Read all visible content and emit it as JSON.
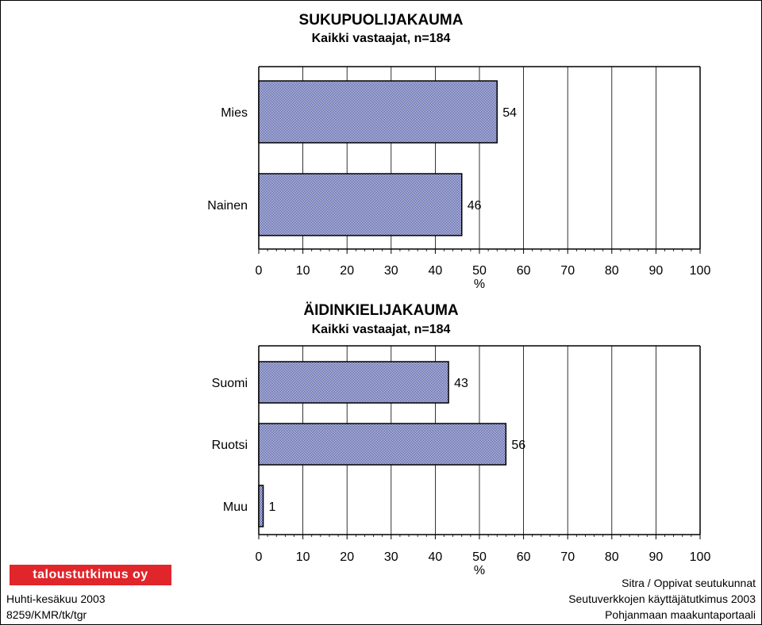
{
  "chart_data": [
    {
      "type": "bar",
      "orientation": "horizontal",
      "title": "SUKUPUOLIJAKAUMA",
      "subtitle": "Kaikki vastaajat, n=184",
      "categories": [
        "Mies",
        "Nainen"
      ],
      "values": [
        54,
        46
      ],
      "xlabel": "%",
      "xlim": [
        0,
        100
      ],
      "xticks": [
        "0",
        "10",
        "20",
        "30",
        "40",
        "50",
        "60",
        "70",
        "80",
        "90",
        "100"
      ],
      "grid": "vertical",
      "bar_color": "#7a82cc"
    },
    {
      "type": "bar",
      "orientation": "horizontal",
      "title": "ÄIDINKIELIJAKAUMA",
      "subtitle": "Kaikki vastaajat, n=184",
      "categories": [
        "Suomi",
        "Ruotsi",
        "Muu"
      ],
      "values": [
        43,
        56,
        1
      ],
      "xlabel": "%",
      "xlim": [
        0,
        100
      ],
      "xticks": [
        "0",
        "10",
        "20",
        "30",
        "40",
        "50",
        "60",
        "70",
        "80",
        "90",
        "100"
      ],
      "grid": "vertical",
      "bar_color": "#7a82cc"
    }
  ],
  "footer": {
    "logo": "taloustutkimus oy",
    "date": "Huhti-kesäkuu 2003",
    "ref": "8259/KMR/tk/tgr",
    "client": "Sitra / Oppivat seutukunnat",
    "study": "Seutuverkkojen käyttäjätutkimus 2003",
    "region": "Pohjanmaan maakuntaportaali"
  },
  "colors": {
    "logo_bg": "#e0262b",
    "bar_fill": "#7a82cc",
    "bar_stroke": "#000000"
  }
}
